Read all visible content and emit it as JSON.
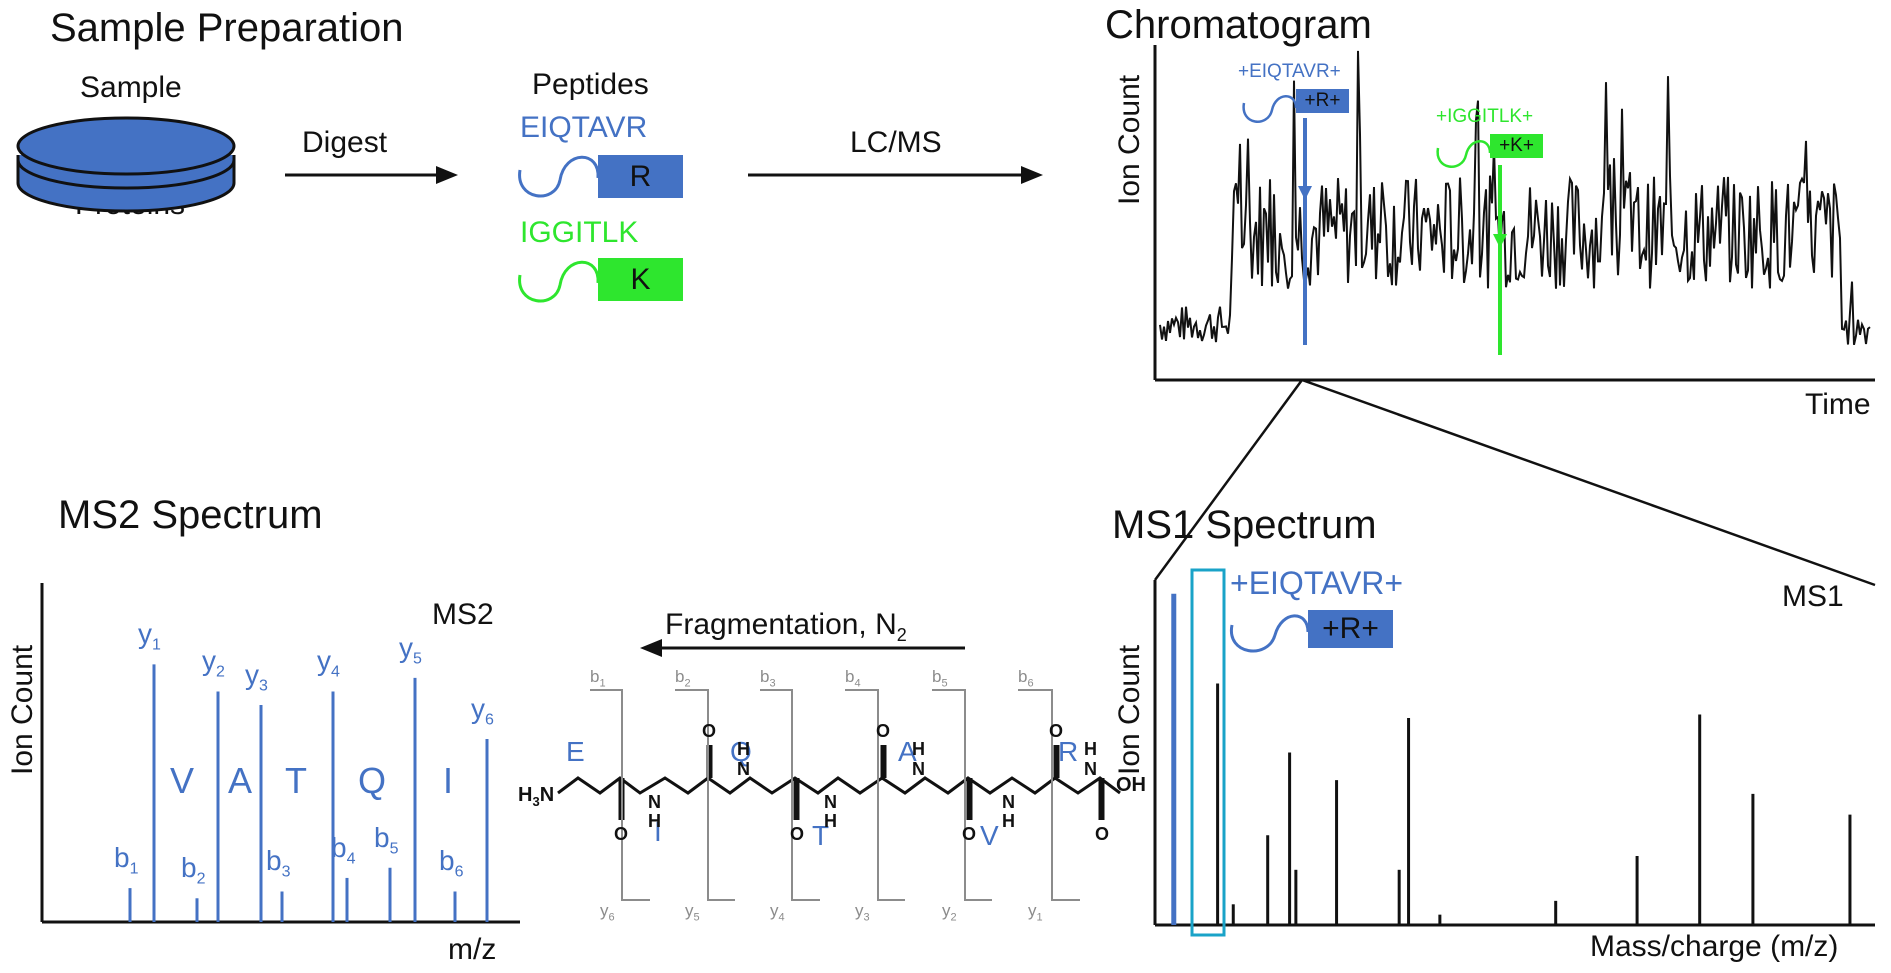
{
  "colors": {
    "blue": "#4472c4",
    "green": "#2ee62e",
    "gray": "#8c8c8c",
    "highlight": "#1aa3c8",
    "black": "#111111"
  },
  "prep": {
    "title": "Sample Preparation",
    "sample_label": "Sample",
    "proteins_label": "Proteins",
    "digest_label": "Digest",
    "peptides_label": "Peptides",
    "peptide1": {
      "sequence": "EIQTAVR",
      "terminal": "R"
    },
    "peptide2": {
      "sequence": "IGGITLK",
      "terminal": "K"
    },
    "lcms_label": "LC/MS"
  },
  "chromatogram": {
    "title": "Chromatogram",
    "ylabel": "Ion Count",
    "xlabel": "Time",
    "annotation_blue": "+EIQTAVR+",
    "annotation_blue_box": "+R+",
    "annotation_green": "+IGGITLK+",
    "annotation_green_box": "+K+"
  },
  "ms1": {
    "title": "MS1 Spectrum",
    "corner_label": "MS1",
    "ylabel": "Ion Count",
    "xlabel": "Mass/charge (m/z)",
    "annotation": "+EIQTAVR+",
    "annotation_box": "+R+"
  },
  "ms2": {
    "title": "MS2 Spectrum",
    "corner_label": "MS2",
    "ylabel": "Ion Count",
    "xlabel": "m/z",
    "residues": [
      "V",
      "A",
      "T",
      "Q",
      "I"
    ]
  },
  "fragmentation": {
    "label": "Fragmentation, N",
    "subscript": "2",
    "n_term": "H",
    "n_term_sub": "3",
    "n_term_atom": "N",
    "c_term": "OH",
    "top_residues": [
      "E",
      "Q",
      "A",
      "R"
    ],
    "bottom_residues": [
      "I",
      "T",
      "V"
    ],
    "nh_label": "N",
    "h_label": "H",
    "o_label": "O",
    "b_ions": [
      "b1",
      "b2",
      "b3",
      "b4",
      "b5",
      "b6"
    ],
    "y_ions": [
      "y6",
      "y5",
      "y4",
      "y3",
      "y2",
      "y1"
    ]
  },
  "chart_data": [
    {
      "type": "line",
      "title": "Chromatogram",
      "xlabel": "Time",
      "ylabel": "Ion Count",
      "note": "dense noisy chromatogram; highlighted peaks",
      "highlights": [
        {
          "name": "+EIQTAVR+",
          "x": 0.2,
          "y": 0.55
        },
        {
          "name": "+IGGITLK+",
          "x": 0.48,
          "y": 0.43
        }
      ]
    },
    {
      "type": "bar",
      "title": "MS1",
      "xlabel": "Mass/charge (m/z)",
      "ylabel": "Ion Count",
      "x": [
        0.03,
        0.1,
        0.125,
        0.18,
        0.215,
        0.225,
        0.29,
        0.39,
        0.405,
        0.455,
        0.64,
        0.77,
        0.87,
        0.955,
        1.11
      ],
      "values": [
        0.96,
        0.7,
        0.06,
        0.26,
        0.5,
        0.16,
        0.42,
        0.16,
        0.6,
        0.03,
        0.07,
        0.2,
        0.61,
        0.38,
        0.32
      ],
      "highlight_index": 0
    },
    {
      "type": "bar",
      "title": "MS2",
      "xlabel": "m/z",
      "ylabel": "Ion Count",
      "categories": [
        "b1",
        "y1",
        "b2",
        "y2",
        "y3",
        "b3",
        "y4",
        "b4",
        "b5",
        "y5",
        "b6",
        "y6"
      ],
      "values": [
        0.1,
        0.76,
        0.07,
        0.68,
        0.64,
        0.09,
        0.68,
        0.13,
        0.16,
        0.72,
        0.09,
        0.54
      ]
    }
  ]
}
